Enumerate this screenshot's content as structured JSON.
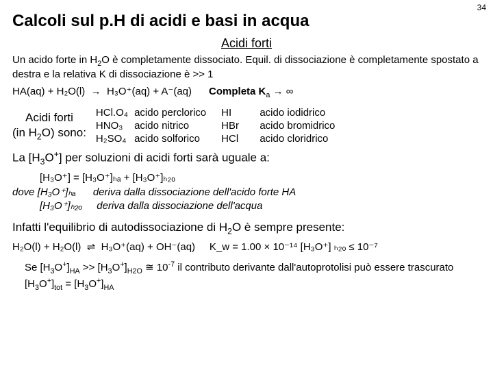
{
  "page_number": "34",
  "title": "Calcoli sul p.H di acidi e basi in acqua",
  "subheading": "Acidi forti",
  "intro_a": "Un acido forte in H",
  "intro_b": "O è completamente dissociato. Equil. di dissociazione è completamente spostato a destra e la relativa K di dissociazione è >> 1",
  "eq1_lhs": "HA(aq)  +  H₂O(l)",
  "eq1_rhs": "H₃O⁺(aq)  +  A⁻(aq)",
  "eq1_note": "Completa  K",
  "eq1_note_tail": " → ∞",
  "acid_label_line1": "Acidi forti",
  "acid_label_line2_a": "(in H",
  "acid_label_line2_b": "O) sono:",
  "col1": [
    {
      "formula": "HCl.O₄",
      "name": "acido perclorico"
    },
    {
      "formula": "HNO₃",
      "name": "acido nitrico"
    },
    {
      "formula": "H₂SO₄",
      "name": "acido solforico"
    }
  ],
  "col2": [
    {
      "formula": "HI",
      "name": "acido iodidrico"
    },
    {
      "formula": "HBr",
      "name": "acido bromidrico"
    },
    {
      "formula": "HCl",
      "name": "acido cloridrico"
    }
  ],
  "stmt1_a": "La [H",
  "stmt1_b": "O",
  "stmt1_c": "] per soluzioni di acidi forti sarà uguale a:",
  "block2_line1": "[H₃O⁺]    =    [H₃O⁺]ₕₐ  +  [H₃O⁺]ₕ₂ₒ",
  "block2_line2_a": "dove   [H₃O⁺]ₕₐ",
  "block2_line2_b": "deriva dalla dissociazione dell'acido forte HA",
  "block2_line3_a": "[H₃O⁺]ₕ₂ₒ",
  "block2_line3_b": "deriva dalla dissociazione dell'acqua",
  "stmt2_a": "Infatti l'equilibrio di autodissociazione di H",
  "stmt2_b": "O è sempre presente:",
  "eq3_lhs": "H₂O(l)  +  H₂O(l)",
  "eq3_rhs": "H₃O⁺(aq)  +  OH⁻(aq)",
  "eq3_kw": "K_w = 1.00 × 10⁻¹⁴   [H₃O⁺] ₕ₂ₒ ≤ 10⁻⁷",
  "final_a": "Se [H",
  "final_b": "O",
  "final_c": "]",
  "final_sub_HA": "HA",
  "final_d": " >> [H",
  "final_e": "O",
  "final_f": "]",
  "final_sub_H2O": "H2O",
  "final_g": " ≅ 10",
  "final_exp": "-7",
  "final_h": " il contributo derivante dall'autoprotolisi può essere trascurato [H",
  "final_i": "O",
  "final_j": "]",
  "final_sub_tot": "tot",
  "final_k": " = [H",
  "final_l": "O",
  "final_m": "]",
  "final_sub_HA2": "HA"
}
